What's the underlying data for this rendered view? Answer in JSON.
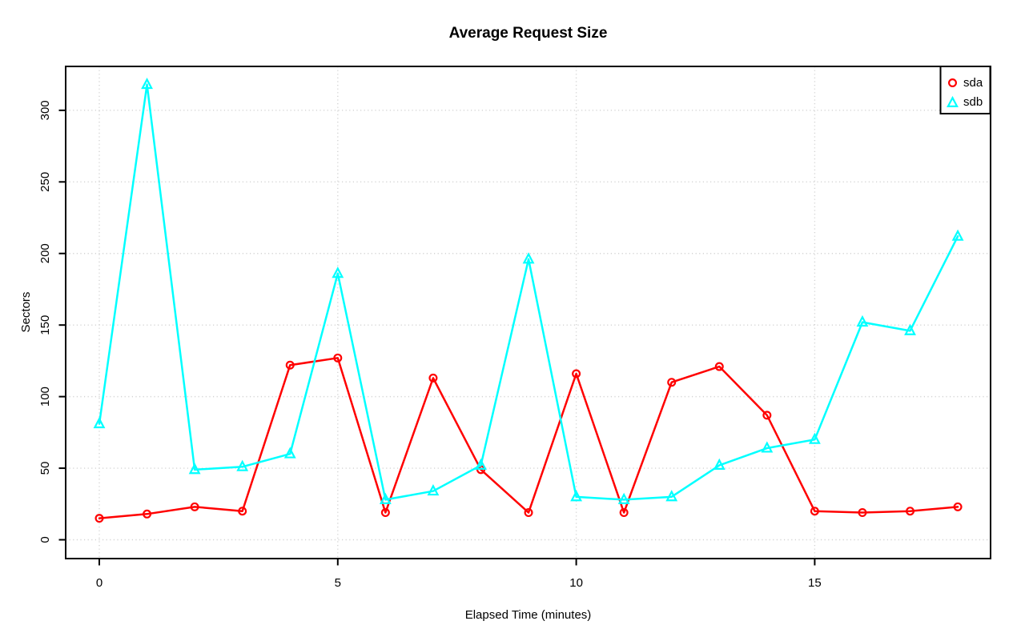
{
  "chart_data": {
    "type": "line",
    "title": "Average Request Size",
    "xlabel": "Elapsed Time (minutes)",
    "ylabel": "Sectors",
    "x": [
      0,
      1,
      2,
      3,
      4,
      5,
      6,
      7,
      8,
      9,
      10,
      11,
      12,
      13,
      14,
      15,
      16,
      17,
      18
    ],
    "series": [
      {
        "name": "sda",
        "color": "#ff0000",
        "marker": "circle",
        "values": [
          15,
          18,
          23,
          20,
          122,
          127,
          19,
          113,
          49,
          19,
          116,
          19,
          110,
          121,
          87,
          20,
          19,
          20,
          23
        ]
      },
      {
        "name": "sdb",
        "color": "#00ffff",
        "marker": "triangle-up",
        "values": [
          81,
          318,
          49,
          51,
          60,
          186,
          28,
          34,
          52,
          196,
          30,
          28,
          30,
          52,
          64,
          70,
          152,
          146,
          212
        ]
      }
    ],
    "xticks": [
      0,
      5,
      10,
      15
    ],
    "yticks": [
      0,
      50,
      100,
      150,
      200,
      250,
      300
    ],
    "xlim": [
      -0.72,
      18.72
    ],
    "ylim": [
      -13,
      331
    ],
    "grid": true,
    "grid_color": "#d3d3d3",
    "grid_style": "dotted",
    "axis_color": "#000000",
    "background": "#ffffff",
    "legend_position": "top-right"
  }
}
